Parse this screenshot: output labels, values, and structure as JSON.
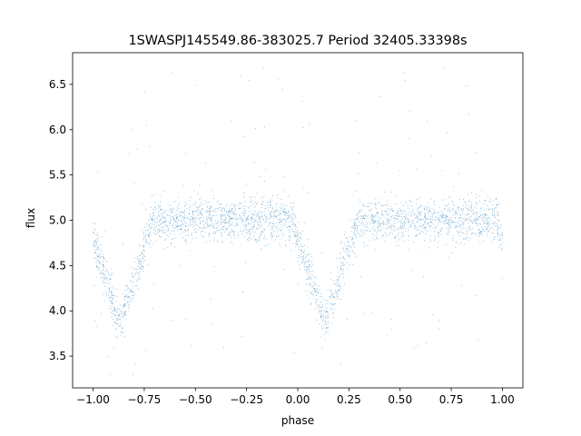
{
  "chart_data": {
    "type": "scatter",
    "title": "1SWASPJ145549.86-383025.7 Period 32405.33398s",
    "xlabel": "phase",
    "ylabel": "flux",
    "xlim": [
      -1.1,
      1.1
    ],
    "ylim": [
      3.15,
      6.85
    ],
    "x_ticks": [
      -1.0,
      -0.75,
      -0.5,
      -0.25,
      0.0,
      0.25,
      0.5,
      0.75,
      1.0
    ],
    "x_tick_labels": [
      "−1.00",
      "−0.75",
      "−0.50",
      "−0.25",
      "0.00",
      "0.25",
      "0.50",
      "0.75",
      "1.00"
    ],
    "y_ticks": [
      3.5,
      4.0,
      4.5,
      5.0,
      5.5,
      6.0,
      6.5
    ],
    "y_tick_labels": [
      "3.5",
      "4.0",
      "4.5",
      "5.0",
      "5.5",
      "6.0",
      "6.5"
    ],
    "grid": false,
    "legend": "none",
    "point_color": "#1f77b4",
    "series": [
      {
        "baseline_flux": 5.0,
        "baseline_spread": 0.12,
        "eclipses": [
          {
            "phase_center": -0.87,
            "depth_flux_min": 3.85,
            "half_width_phase": 0.16
          },
          {
            "phase_center": 0.13,
            "depth_flux_min": 3.85,
            "half_width_phase": 0.16
          },
          {
            "phase_center": 1.13,
            "depth_flux_min": 3.85,
            "half_width_phase": 0.16
          }
        ],
        "phase_range": [
          -1.0,
          1.0
        ],
        "approx_point_count": 60000
      }
    ]
  }
}
